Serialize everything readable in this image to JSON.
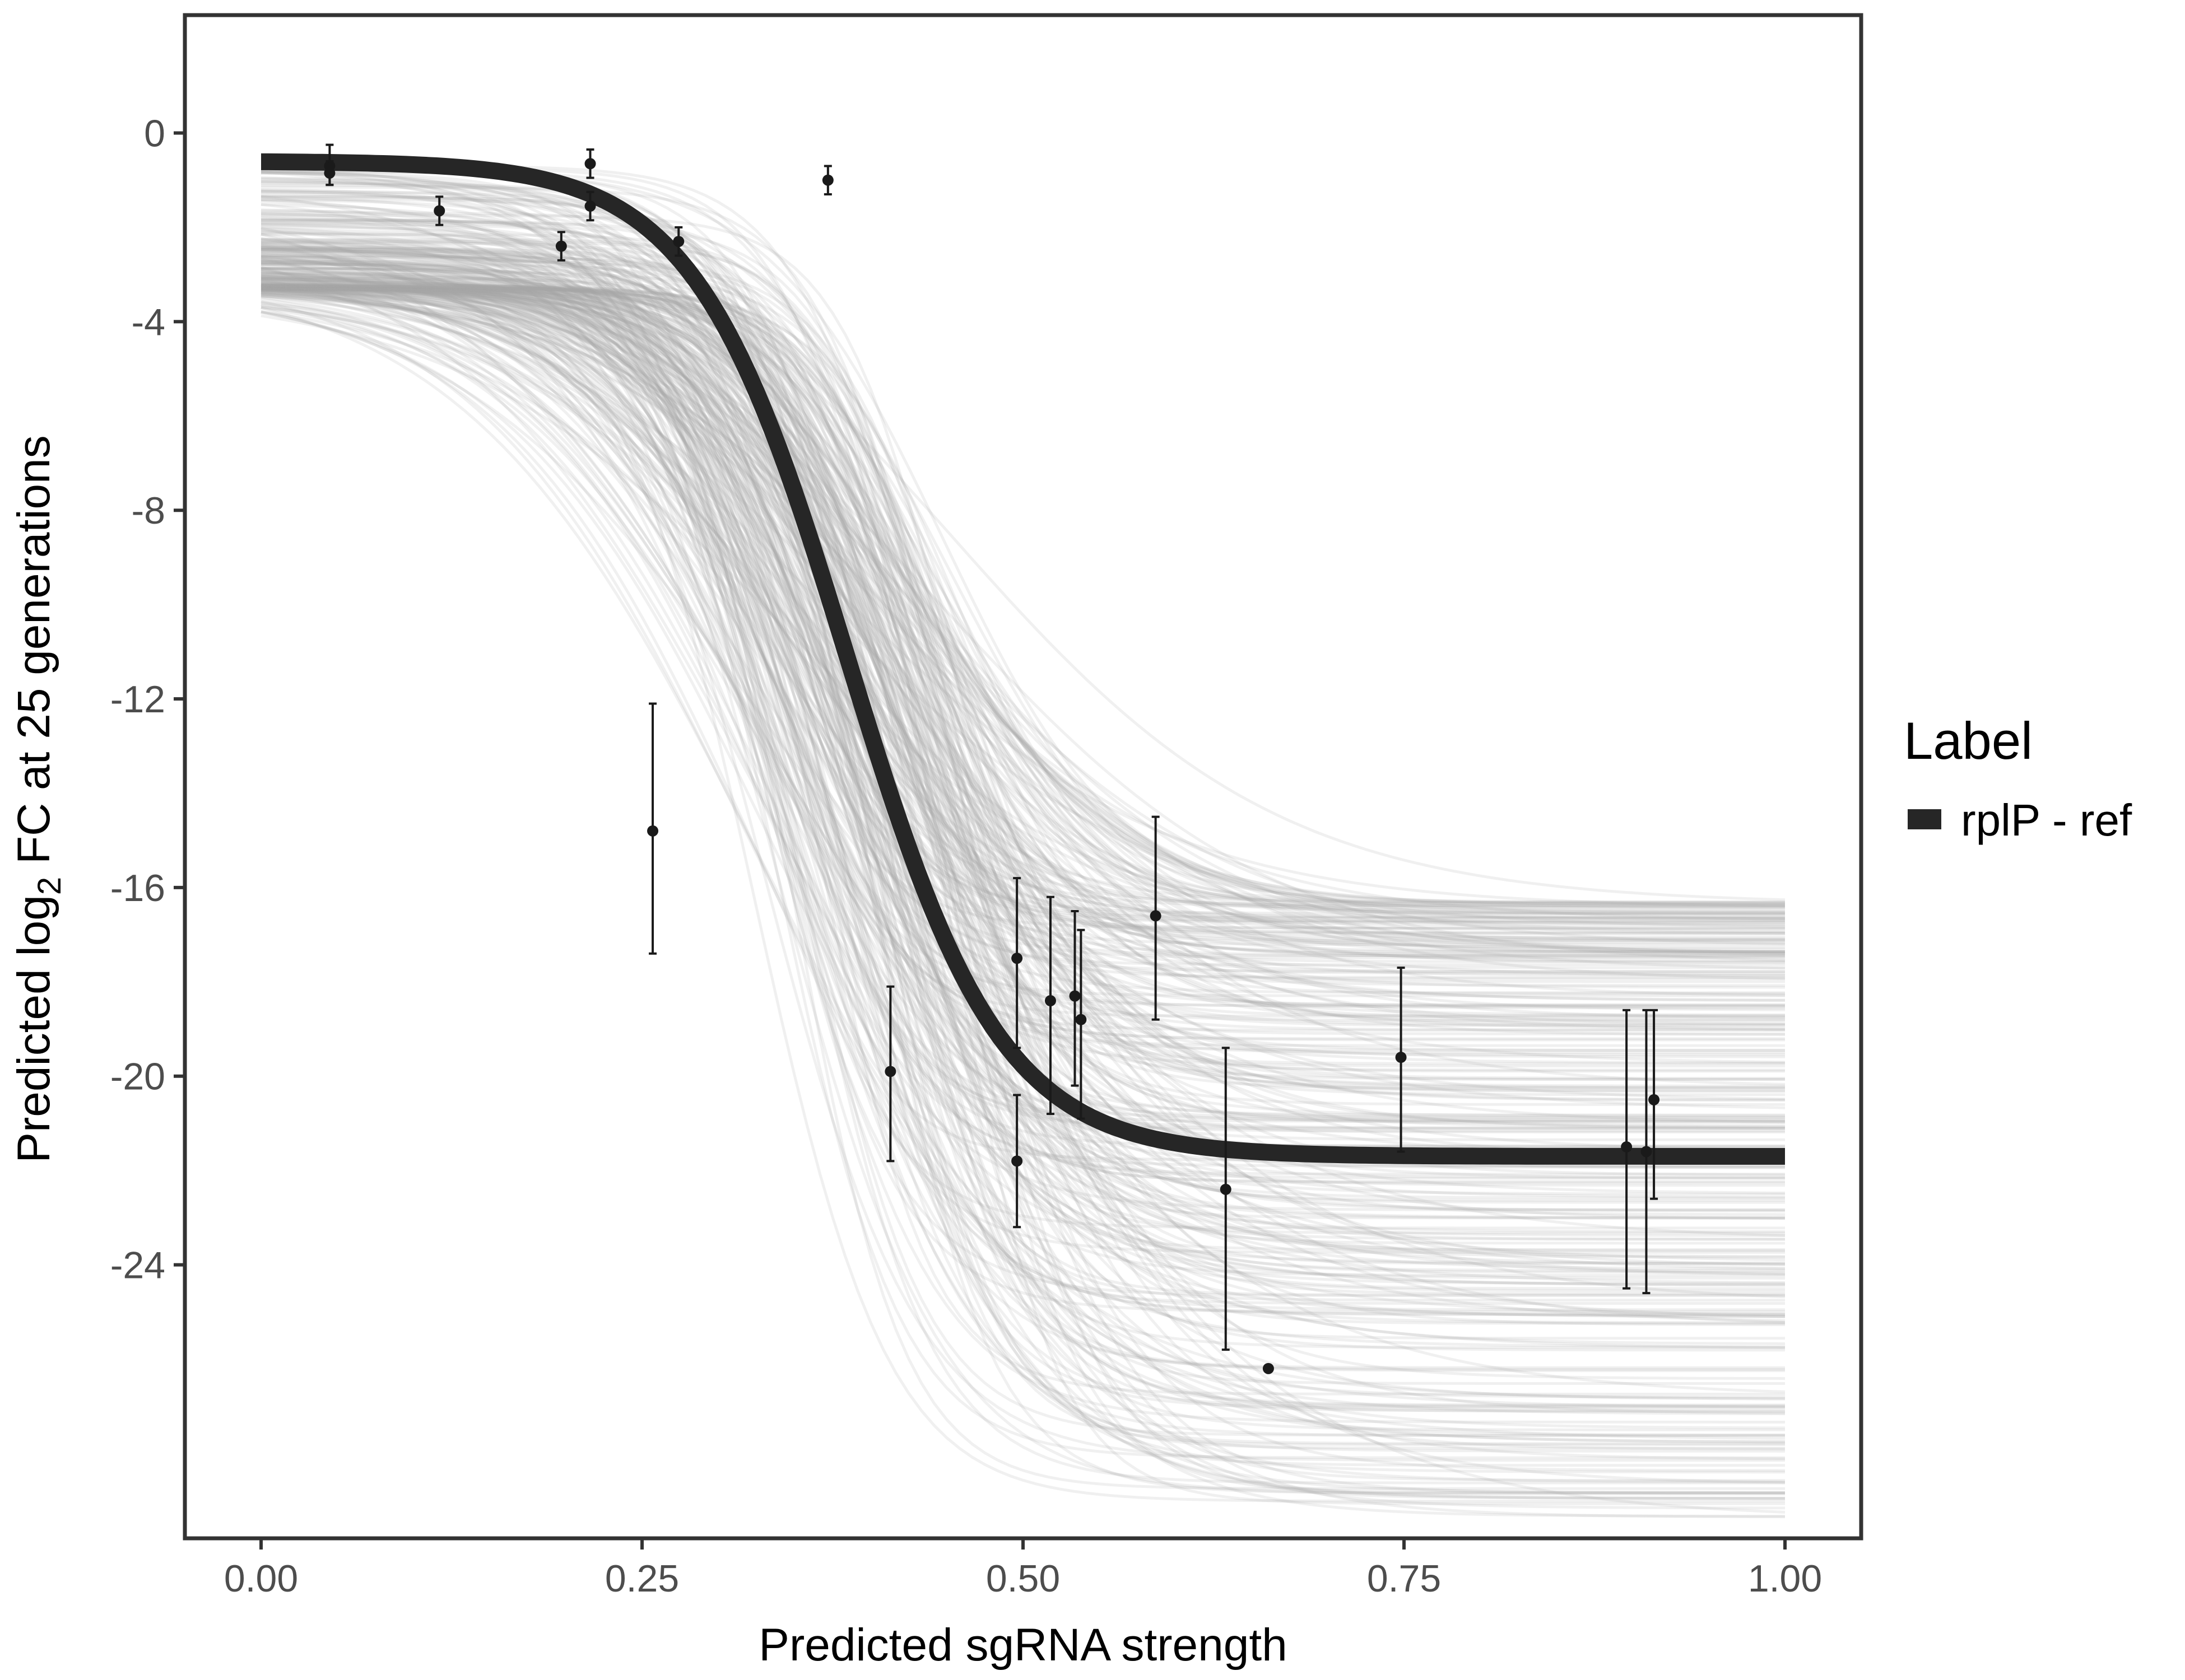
{
  "chart_data": {
    "type": "line",
    "title": "",
    "xlabel": "Predicted sgRNA strength",
    "ylabel_prefix": "Predicted  log",
    "ylabel_subscript": "2",
    "ylabel_suffix": " FC at 25 generations",
    "xlim": [
      -0.05,
      1.05
    ],
    "ylim": [
      -29.8,
      2.5
    ],
    "x_ticks": [
      0.0,
      0.25,
      0.5,
      0.75,
      1.0
    ],
    "x_tick_labels": [
      "0.00",
      "0.25",
      "0.50",
      "0.75",
      "1.00"
    ],
    "y_ticks": [
      0,
      -4,
      -8,
      -12,
      -16,
      -20,
      -24
    ],
    "y_tick_labels": [
      "0",
      "-4",
      "-8",
      "-12",
      "-16",
      "-20",
      "-24"
    ],
    "grid": false,
    "legend": {
      "title": "Label",
      "position": "right",
      "entries": [
        {
          "label": "rplP - ref",
          "color": "#262626"
        }
      ]
    },
    "fit_curve": {
      "name": "rplP - ref",
      "model": "logistic",
      "upper": -0.6,
      "lower": -21.7,
      "midpoint": 0.385,
      "slope": 20,
      "color": "#262626"
    },
    "posterior_draws": {
      "count": 320,
      "color": "#a6a6a6",
      "upper_range": [
        -3.3,
        -0.5
      ],
      "lower_range": [
        -29.5,
        -16.3
      ],
      "midpoint_range": [
        0.31,
        0.47
      ],
      "slope_range": [
        9,
        28
      ]
    },
    "points": [
      {
        "x": 0.045,
        "y": -0.7,
        "ymin": -1.1,
        "ymax": -0.25
      },
      {
        "x": 0.045,
        "y": -0.85,
        "ymin": -1.1,
        "ymax": -0.6
      },
      {
        "x": 0.117,
        "y": -1.65,
        "ymin": -1.95,
        "ymax": -1.35
      },
      {
        "x": 0.197,
        "y": -2.4,
        "ymin": -2.7,
        "ymax": -2.1
      },
      {
        "x": 0.216,
        "y": -0.65,
        "ymin": -0.95,
        "ymax": -0.35
      },
      {
        "x": 0.216,
        "y": -1.55,
        "ymin": -1.85,
        "ymax": -1.25
      },
      {
        "x": 0.274,
        "y": -2.3,
        "ymin": -2.6,
        "ymax": -2.0
      },
      {
        "x": 0.257,
        "y": -14.8,
        "ymin": -17.4,
        "ymax": -12.1
      },
      {
        "x": 0.372,
        "y": -1.0,
        "ymin": -1.3,
        "ymax": -0.7
      },
      {
        "x": 0.413,
        "y": -19.9,
        "ymin": -21.8,
        "ymax": -18.1
      },
      {
        "x": 0.496,
        "y": -17.5,
        "ymin": -19.4,
        "ymax": -15.8
      },
      {
        "x": 0.496,
        "y": -21.8,
        "ymin": -23.2,
        "ymax": -20.4
      },
      {
        "x": 0.518,
        "y": -18.4,
        "ymin": -20.8,
        "ymax": -16.2
      },
      {
        "x": 0.534,
        "y": -18.3,
        "ymin": -20.2,
        "ymax": -16.5
      },
      {
        "x": 0.538,
        "y": -18.8,
        "ymin": -20.9,
        "ymax": -16.9
      },
      {
        "x": 0.587,
        "y": -16.6,
        "ymin": -18.8,
        "ymax": -14.5
      },
      {
        "x": 0.633,
        "y": -22.4,
        "ymin": -25.8,
        "ymax": -19.4
      },
      {
        "x": 0.661,
        "y": -26.2,
        "ymin": -26.2,
        "ymax": -26.2
      },
      {
        "x": 0.748,
        "y": -19.6,
        "ymin": -21.6,
        "ymax": -17.7
      },
      {
        "x": 0.896,
        "y": -21.5,
        "ymin": -24.5,
        "ymax": -18.6
      },
      {
        "x": 0.909,
        "y": -21.6,
        "ymin": -24.6,
        "ymax": -18.6
      },
      {
        "x": 0.914,
        "y": -20.5,
        "ymin": -22.6,
        "ymax": -18.6
      }
    ]
  }
}
